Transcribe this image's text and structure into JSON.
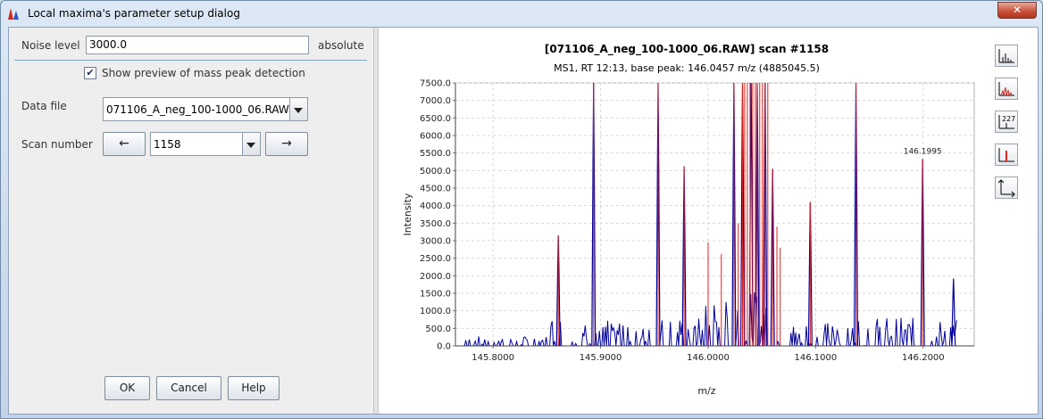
{
  "window": {
    "title": "Local maxima's parameter setup dialog",
    "close_label": "✕"
  },
  "form": {
    "noise_label": "Noise level",
    "noise_value": "3000.0",
    "noise_unit": "absolute",
    "preview_label": "Show preview of mass peak detection",
    "preview_checked": "✔",
    "data_file_label": "Data file",
    "data_file_value": "071106_A_neg_100-1000_06.RAW",
    "scan_label": "Scan number",
    "scan_prev": "←",
    "scan_value": "1158",
    "scan_next": "→"
  },
  "buttons": {
    "ok": "OK",
    "cancel": "Cancel",
    "help": "Help"
  },
  "toolbar": {
    "icons": [
      "centroid-view-icon",
      "continuous-view-icon",
      "peak-labels-icon",
      "detected-peaks-icon",
      "axes-icon"
    ]
  },
  "colors": {
    "profile": "#00009a",
    "peaks": "#e0231c"
  },
  "chart_data": {
    "type": "line",
    "title": "[071106_A_neg_100-1000_06.RAW] scan #1158",
    "subtitle": "MS1, RT 12:13, base peak: 146.0457 m/z (4885045.5)",
    "xlabel": "m/z",
    "ylabel": "Intensity",
    "xlim": [
      145.765,
      146.2475
    ],
    "ylim": [
      0,
      7500
    ],
    "xticks": [
      "145.8000",
      "145.9000",
      "146.0000",
      "146.1000",
      "146.2000"
    ],
    "yticks": [
      "0.0",
      "500.0",
      "1000.0",
      "1500.0",
      "2000.0",
      "2500.0",
      "3000.0",
      "3500.0",
      "4000.0",
      "4500.0",
      "5000.0",
      "5500.0",
      "6000.0",
      "6500.0",
      "7000.0",
      "7500.0"
    ],
    "grid": true,
    "annotations": [
      {
        "x": 146.1995,
        "text": "146.1995"
      }
    ],
    "detected_peaks": [
      {
        "x": 145.8607,
        "y": 3150
      },
      {
        "x": 145.8935,
        "y": 7500
      },
      {
        "x": 145.9535,
        "y": 7500
      },
      {
        "x": 145.9777,
        "y": 5120
      },
      {
        "x": 146.0,
        "y": 2950
      },
      {
        "x": 146.0123,
        "y": 2620
      },
      {
        "x": 146.024,
        "y": 7500
      },
      {
        "x": 146.028,
        "y": 3500
      },
      {
        "x": 146.032,
        "y": 7500
      },
      {
        "x": 146.034,
        "y": 7500
      },
      {
        "x": 146.0365,
        "y": 7500
      },
      {
        "x": 146.039,
        "y": 7500
      },
      {
        "x": 146.0415,
        "y": 7500
      },
      {
        "x": 146.044,
        "y": 7500
      },
      {
        "x": 146.0457,
        "y": 7500
      },
      {
        "x": 146.048,
        "y": 7500
      },
      {
        "x": 146.0505,
        "y": 7500
      },
      {
        "x": 146.053,
        "y": 7500
      },
      {
        "x": 146.0555,
        "y": 7500
      },
      {
        "x": 146.06,
        "y": 5050
      },
      {
        "x": 146.064,
        "y": 3400
      },
      {
        "x": 146.067,
        "y": 2800
      },
      {
        "x": 146.095,
        "y": 4100
      },
      {
        "x": 146.1375,
        "y": 7500
      },
      {
        "x": 146.1995,
        "y": 5330
      }
    ],
    "profile_peaks": [
      {
        "x": 145.8607,
        "y": 3150
      },
      {
        "x": 145.8935,
        "y": 7500
      },
      {
        "x": 145.9535,
        "y": 7500
      },
      {
        "x": 145.9777,
        "y": 5120
      },
      {
        "x": 146.024,
        "y": 7500
      },
      {
        "x": 146.032,
        "y": 7500
      },
      {
        "x": 146.04,
        "y": 7500
      },
      {
        "x": 146.0457,
        "y": 7500
      },
      {
        "x": 146.053,
        "y": 7500
      },
      {
        "x": 146.06,
        "y": 5050
      },
      {
        "x": 146.095,
        "y": 4100
      },
      {
        "x": 146.1375,
        "y": 7500
      },
      {
        "x": 146.1995,
        "y": 5330
      },
      {
        "x": 146.2282,
        "y": 1920
      }
    ]
  }
}
